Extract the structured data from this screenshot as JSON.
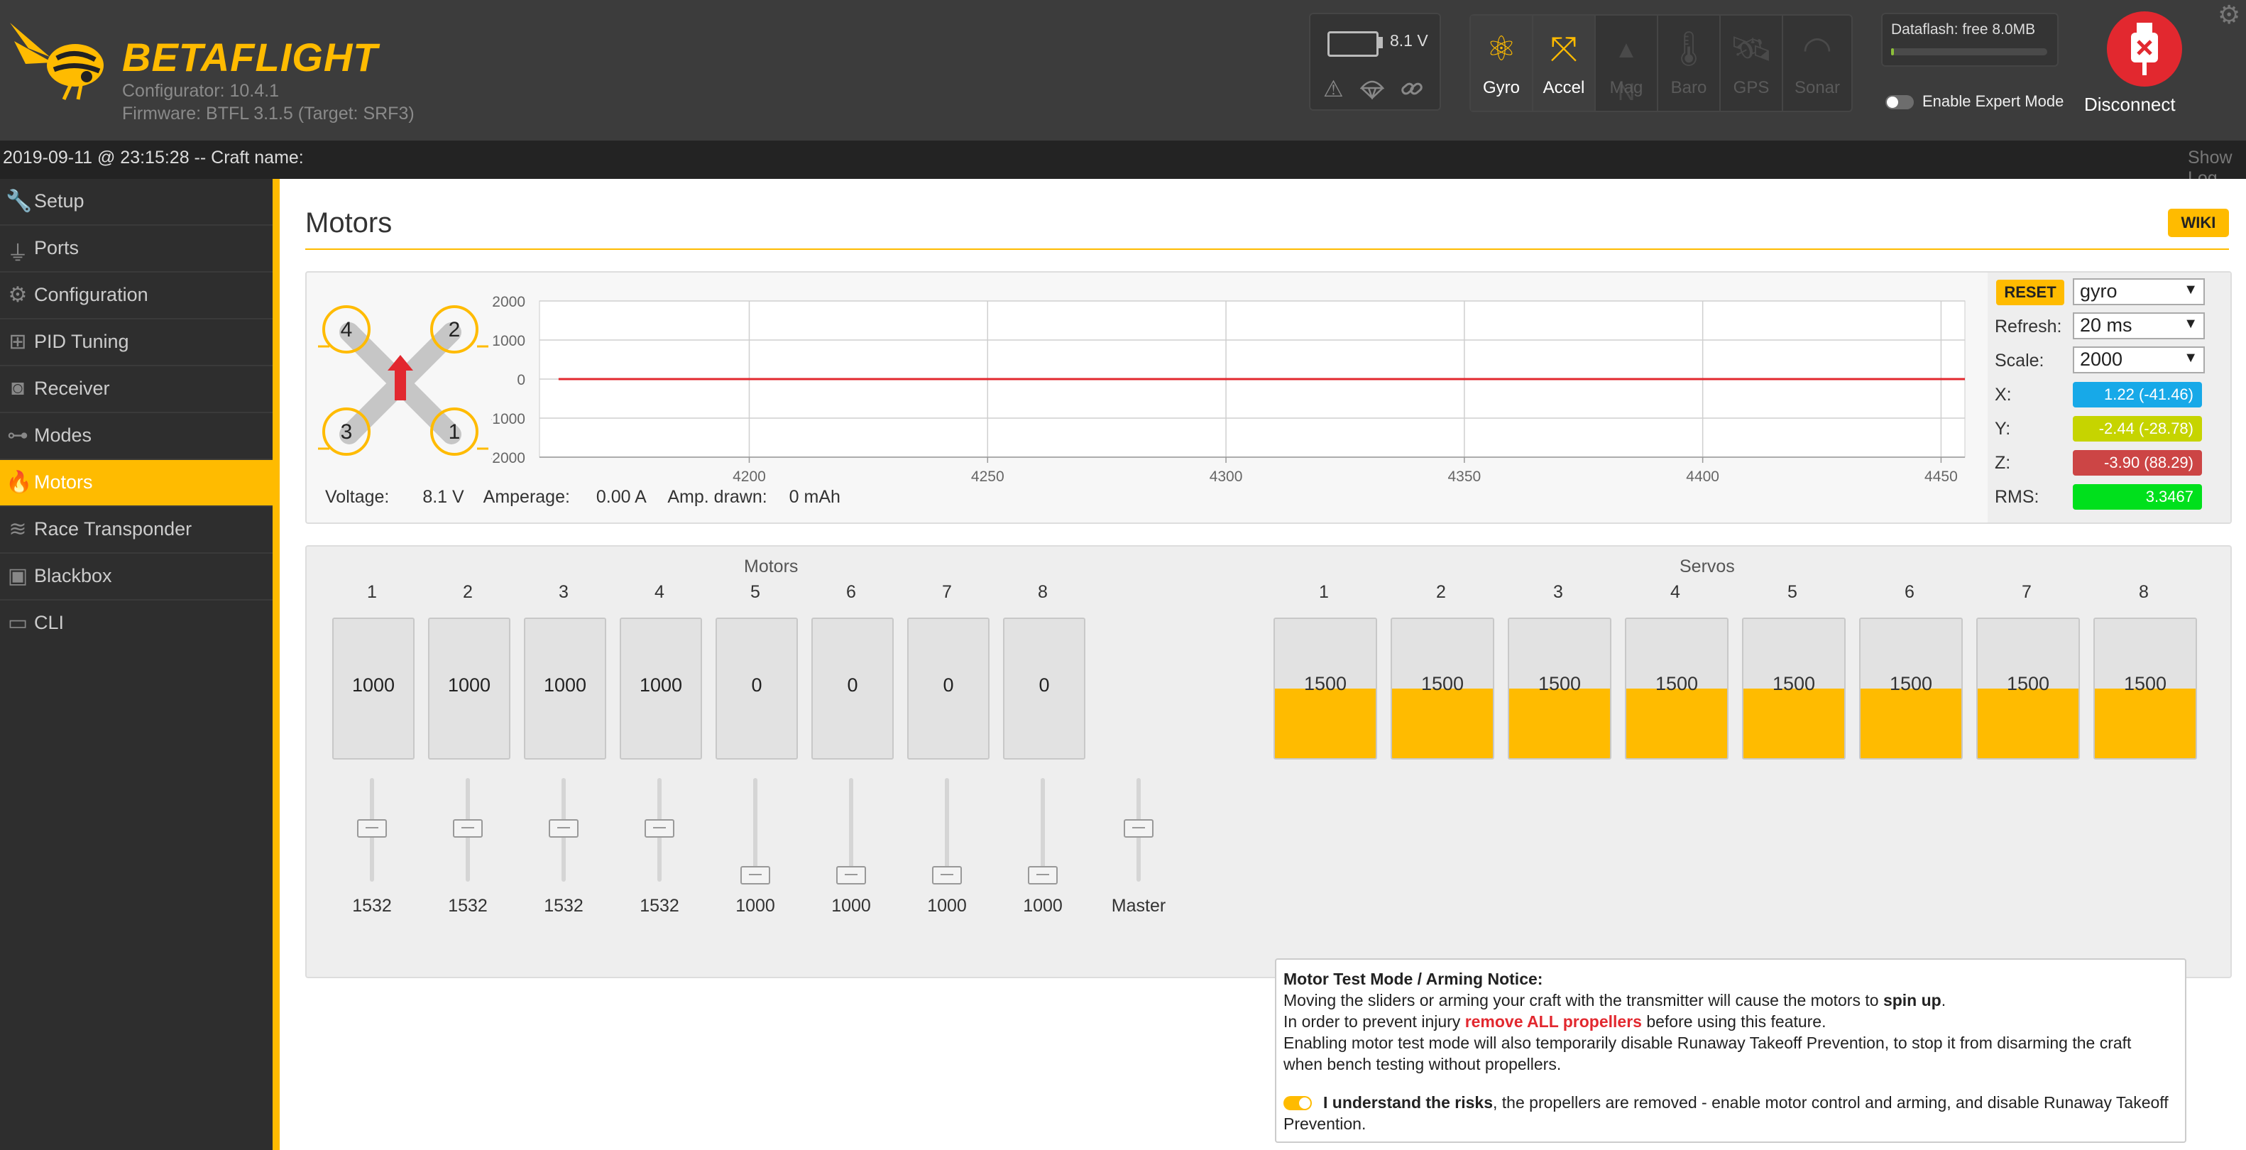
{
  "app": {
    "brand_part1": "BETA",
    "brand_part2": "FLIGHT",
    "configurator": "Configurator: 10.4.1",
    "firmware": "Firmware: BTFL 3.1.5 (Target: SRF3)"
  },
  "battery": {
    "voltage": "8.1 V"
  },
  "sensors": [
    {
      "name": "Gyro",
      "icon": "gyro-icon",
      "active": true
    },
    {
      "name": "Accel",
      "icon": "accel-icon",
      "active": true
    },
    {
      "name": "Mag",
      "icon": "mag-icon",
      "active": false
    },
    {
      "name": "Baro",
      "icon": "baro-icon",
      "active": false
    },
    {
      "name": "GPS",
      "icon": "gps-icon",
      "active": false
    },
    {
      "name": "Sonar",
      "icon": "sonar-icon",
      "active": false
    }
  ],
  "dataflash": {
    "label": "Dataflash: free 8.0MB"
  },
  "expert_mode": {
    "label": "Enable Expert Mode",
    "enabled": false
  },
  "disconnect": {
    "label": "Disconnect"
  },
  "statusbar": {
    "text": "2019-09-11 @ 23:15:28 -- Craft name:",
    "show_log": "Show Log"
  },
  "sidebar": {
    "items": [
      {
        "label": "Setup",
        "icon": "wrench-icon"
      },
      {
        "label": "Ports",
        "icon": "plug-icon"
      },
      {
        "label": "Configuration",
        "icon": "gear-icon"
      },
      {
        "label": "PID Tuning",
        "icon": "sitemap-icon"
      },
      {
        "label": "Receiver",
        "icon": "receiver-icon"
      },
      {
        "label": "Modes",
        "icon": "toggle-icon"
      },
      {
        "label": "Motors",
        "icon": "flame-icon",
        "active": true
      },
      {
        "label": "Race Transponder",
        "icon": "transponder-icon"
      },
      {
        "label": "Blackbox",
        "icon": "blackbox-icon"
      },
      {
        "label": "CLI",
        "icon": "terminal-icon"
      }
    ]
  },
  "page": {
    "title": "Motors",
    "wiki": "WIKI"
  },
  "quad": {
    "motor_labels": [
      "4",
      "2",
      "3",
      "1"
    ]
  },
  "graph_controls": {
    "reset": "RESET",
    "sensor_select": "gyro",
    "refresh_label": "Refresh:",
    "refresh_value": "20 ms",
    "scale_label": "Scale:",
    "scale_value": "2000",
    "x_label": "X:",
    "x_value": "1.22 (-41.46)",
    "y_label": "Y:",
    "y_value": "-2.44 (-28.78)",
    "z_label": "Z:",
    "z_value": "-3.90 (88.29)",
    "rms_label": "RMS:",
    "rms_value": "3.3467",
    "colors": {
      "x": "#17a9e8",
      "y": "#c6d400",
      "z": "#cc4545",
      "rms": "#00e01c"
    }
  },
  "power": {
    "voltage_label": "Voltage:",
    "voltage_value": "8.1 V",
    "amperage_label": "Amperage:",
    "amperage_value": "0.00 A",
    "drawn_label": "Amp. drawn:",
    "drawn_value": "0 mAh"
  },
  "chart_data": {
    "type": "line",
    "x": [
      4160,
      4200,
      4250,
      4300,
      4350,
      4400,
      4450,
      4455
    ],
    "series": [
      {
        "values": [
          0,
          0,
          0,
          0,
          0,
          0,
          0,
          0
        ],
        "color": "#e2282f"
      }
    ],
    "xticks": [
      4200,
      4250,
      4300,
      4350,
      4400,
      4450
    ],
    "yticks": [
      2000,
      1000,
      0,
      -1000,
      -2000
    ],
    "ylim": [
      -2000,
      2000
    ],
    "xlim": [
      4156,
      4455
    ],
    "grid": true
  },
  "motors": {
    "title": "Motors",
    "numbers": [
      "1",
      "2",
      "3",
      "4",
      "5",
      "6",
      "7",
      "8"
    ],
    "values": [
      "1000",
      "1000",
      "1000",
      "1000",
      "0",
      "0",
      "0",
      "0"
    ],
    "slider_values": [
      "1532",
      "1532",
      "1532",
      "1532",
      "1000",
      "1000",
      "1000",
      "1000"
    ],
    "slider_fraction": [
      0.532,
      0.532,
      0.532,
      0.532,
      0,
      0,
      0,
      0
    ],
    "master_label": "Master",
    "master_fraction": 0.532
  },
  "servos": {
    "title": "Servos",
    "numbers": [
      "1",
      "2",
      "3",
      "4",
      "5",
      "6",
      "7",
      "8"
    ],
    "values": [
      "1500",
      "1500",
      "1500",
      "1500",
      "1500",
      "1500",
      "1500",
      "1500"
    ],
    "fill_fraction": 0.5
  },
  "notice": {
    "title": "Motor Test Mode / Arming Notice:",
    "line1_a": "Moving the sliders or arming your craft with the transmitter will cause the motors to ",
    "line1_b": "spin up",
    "line1_c": ".",
    "line2_a": "In order to prevent injury ",
    "line2_b": "remove ALL propellers",
    "line2_c": " before using this feature.",
    "line3": "Enabling motor test mode will also temporarily disable Runaway Takeoff Prevention, to stop it from disarming the craft",
    "line4": "when bench testing without propellers.",
    "ack_bold": "I understand the risks",
    "ack_rest": ", the propellers are removed - enable motor control and arming, and disable Runaway Takeoff",
    "ack_rest2": "Prevention."
  }
}
